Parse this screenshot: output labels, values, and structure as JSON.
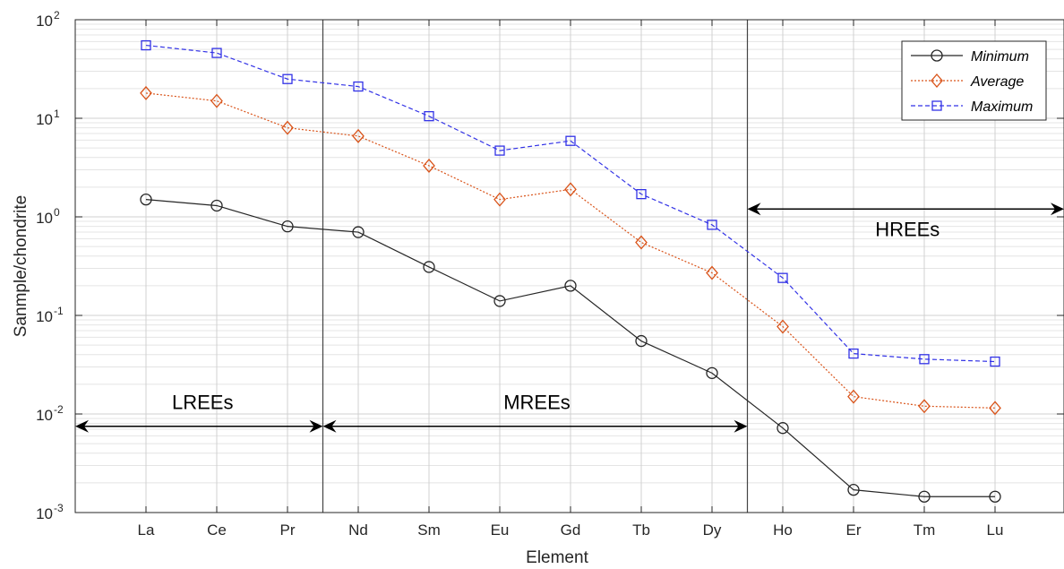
{
  "chart_data": {
    "type": "line",
    "yscale": "log",
    "xlabel": "Element",
    "ylabel": "Sanmple/chondrite",
    "categories": [
      "La",
      "Ce",
      "Pr",
      "Nd",
      "Sm",
      "Eu",
      "Gd",
      "Tb",
      "Dy",
      "Ho",
      "Er",
      "Tm",
      "Lu"
    ],
    "ylim": [
      0.001,
      100
    ],
    "yticks": [
      {
        "base": "10",
        "exp": "-3"
      },
      {
        "base": "10",
        "exp": "-2"
      },
      {
        "base": "10",
        "exp": "-1"
      },
      {
        "base": "10",
        "exp": "0"
      },
      {
        "base": "10",
        "exp": "1"
      },
      {
        "base": "10",
        "exp": "2"
      }
    ],
    "grid": true,
    "legend_position": "top-right",
    "series": [
      {
        "name": "Minimum",
        "marker": "circle",
        "line": "solid",
        "color": "#262626",
        "values": [
          1.5,
          1.3,
          0.8,
          0.7,
          0.31,
          0.14,
          0.2,
          0.055,
          0.026,
          0.0072,
          0.0017,
          0.00145,
          0.00145
        ]
      },
      {
        "name": "Average",
        "marker": "diamond",
        "line": "dotted",
        "color": "#D95319",
        "values": [
          18,
          15,
          8,
          6.6,
          3.3,
          1.5,
          1.9,
          0.55,
          0.27,
          0.077,
          0.015,
          0.012,
          0.0115
        ]
      },
      {
        "name": "Maximum",
        "marker": "square",
        "line": "dashed",
        "color": "#3232E6",
        "values": [
          55,
          46,
          25,
          21,
          10.5,
          4.7,
          5.9,
          1.7,
          0.83,
          0.24,
          0.041,
          0.036,
          0.034
        ]
      }
    ],
    "annotations": [
      {
        "text": "LREEs",
        "span": [
          "Pr",
          "Nd"
        ],
        "arrow_y": 0.0075
      },
      {
        "text": "MREEs",
        "span": [
          "Pr",
          "Ho"
        ],
        "arrow_y": 0.0075
      },
      {
        "text": "HREEs",
        "span": [
          "Dy",
          "end"
        ],
        "arrow_y": 1.2
      }
    ],
    "divider_lines_after": [
      "Pr",
      "Dy"
    ]
  }
}
